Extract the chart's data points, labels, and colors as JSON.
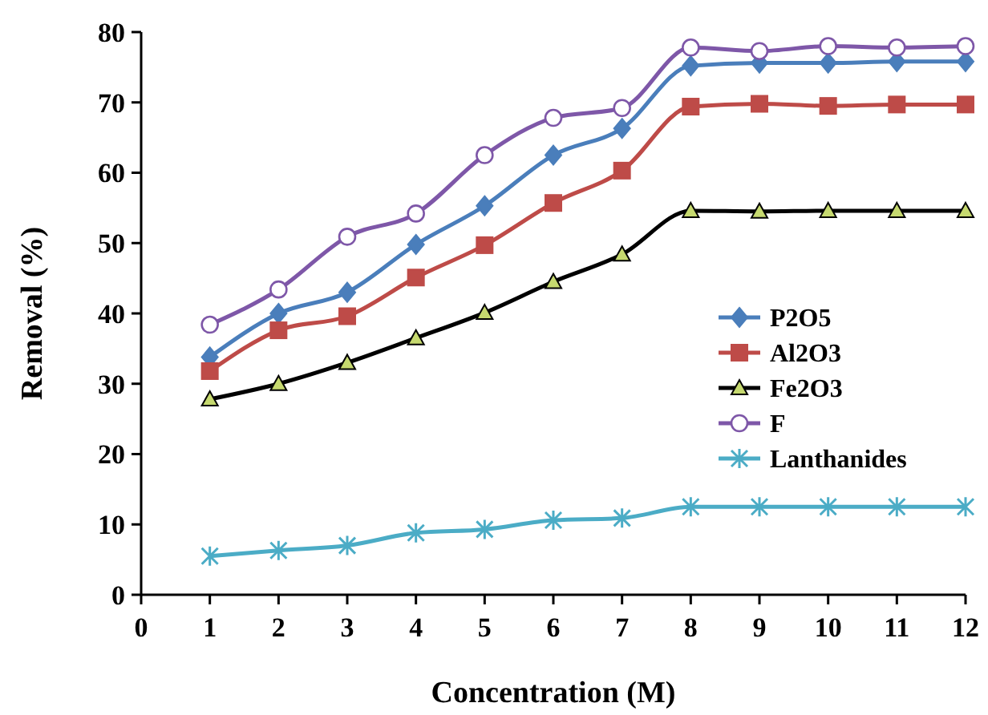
{
  "chart_data": {
    "type": "line",
    "xlabel": "Concentration (M)",
    "ylabel": "Removal (%)",
    "x": [
      1,
      2,
      3,
      4,
      5,
      6,
      7,
      8,
      9,
      10,
      11,
      12
    ],
    "xlim": [
      0,
      12
    ],
    "xticks": [
      0,
      1,
      2,
      3,
      4,
      5,
      6,
      7,
      8,
      9,
      10,
      11,
      12
    ],
    "ylim": [
      0,
      80
    ],
    "yticks": [
      0,
      10,
      20,
      30,
      40,
      50,
      60,
      70,
      80
    ],
    "grid": false,
    "legend": "right",
    "series": [
      {
        "name": "P2O5",
        "color": "#4a7ebb",
        "marker": "diamond",
        "values": [
          33.8,
          40,
          43,
          49.8,
          55.3,
          62.5,
          66.3,
          75.2,
          75.6,
          75.6,
          75.8,
          75.8
        ]
      },
      {
        "name": "Al2O3",
        "color": "#be4b48",
        "marker": "square",
        "values": [
          31.8,
          37.6,
          39.6,
          45.1,
          49.7,
          55.7,
          60.3,
          69.4,
          69.8,
          69.5,
          69.7,
          69.7
        ]
      },
      {
        "name": "Fe2O3",
        "color": "#000000",
        "marker": "triangle",
        "values": [
          27.8,
          30,
          33,
          36.5,
          40.1,
          44.5,
          48.4,
          54.6,
          54.5,
          54.6,
          54.6,
          54.6
        ]
      },
      {
        "name": "F",
        "color": "#7e57a8",
        "marker": "circle",
        "values": [
          38.4,
          43.4,
          50.9,
          54.2,
          62.5,
          67.8,
          69.2,
          77.8,
          77.3,
          78,
          77.8,
          78
        ]
      },
      {
        "name": "Lanthanides",
        "color": "#4bacc6",
        "marker": "cross",
        "values": [
          5.5,
          6.3,
          7,
          8.8,
          9.3,
          10.6,
          10.9,
          12.5,
          12.5,
          12.5,
          12.5,
          12.5
        ]
      }
    ]
  }
}
